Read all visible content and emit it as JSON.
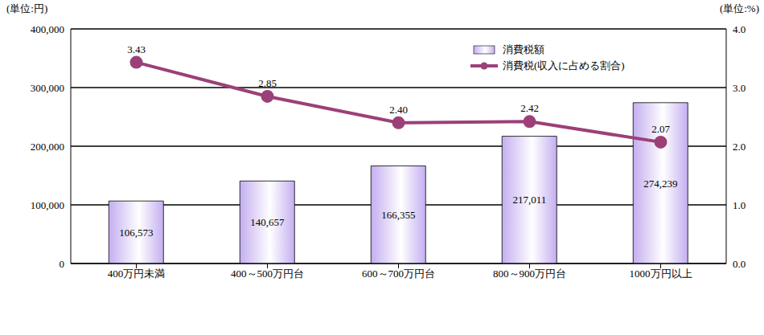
{
  "chart_data": {
    "type": "bar",
    "categories": [
      "400万円未満",
      "400～500万円台",
      "600～700万円台",
      "800～900万円台",
      "1000万円以上"
    ],
    "series": [
      {
        "name": "消費税額",
        "type": "bar",
        "axis": "y",
        "color": "#c4aef0",
        "values": [
          106573,
          140657,
          166355,
          217011,
          274239
        ],
        "value_labels": [
          "106,573",
          "140,657",
          "166,355",
          "217,011",
          "274,239"
        ]
      },
      {
        "name": "消費税(収入に占める割合)",
        "type": "line",
        "axis": "y2",
        "color": "#9c4078",
        "marker": "circle",
        "values": [
          3.43,
          2.85,
          2.4,
          2.42,
          2.07
        ],
        "value_labels": [
          "3.43",
          "2.85",
          "2.40",
          "2.42",
          "2.07"
        ]
      }
    ],
    "y_label": "(単位:円)",
    "y2_label": "(単位:%)",
    "ylim": [
      0,
      400000
    ],
    "yticks": [
      0,
      {
        "value": 100000,
        "label": "100,000"
      },
      {
        "value": 200000,
        "label": "200,000"
      },
      {
        "value": 300000,
        "label": "300,000"
      },
      {
        "value": 400000,
        "label": "400,000"
      }
    ],
    "y2lim": [
      0,
      4
    ],
    "y2ticks": [
      {
        "value": 0,
        "label": "0.0"
      },
      {
        "value": 1,
        "label": "1.0"
      },
      {
        "value": 2,
        "label": "2.0"
      },
      {
        "value": 3,
        "label": "3.0"
      },
      {
        "value": 4,
        "label": "4.0"
      }
    ],
    "grid": true,
    "legend": "upper right",
    "data_labels": true
  }
}
